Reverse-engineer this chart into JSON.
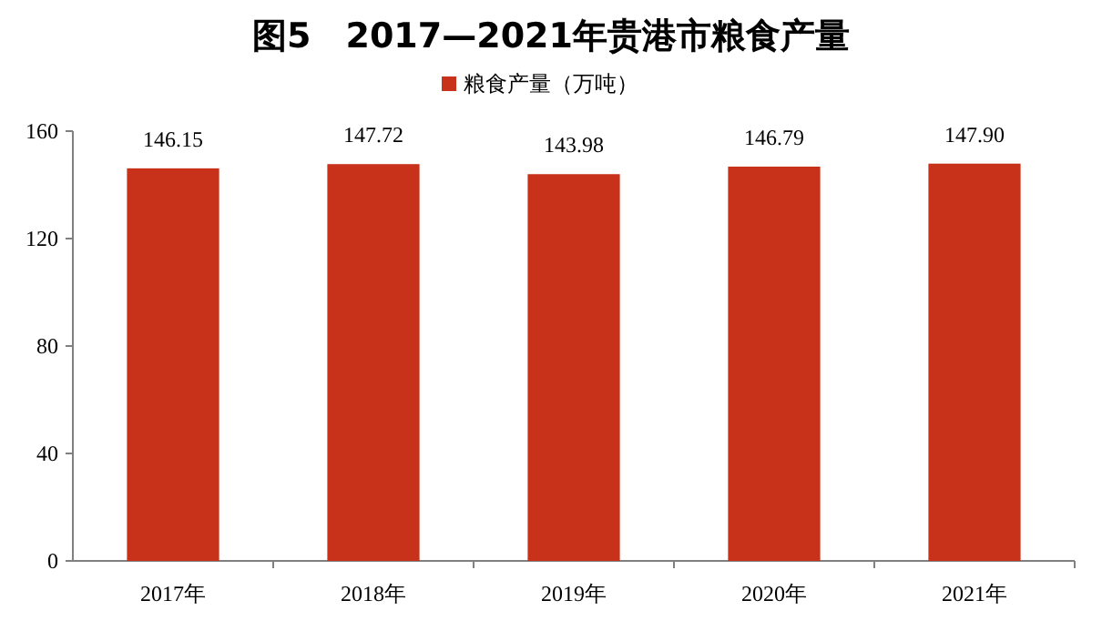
{
  "chart_data": {
    "type": "bar",
    "title": "图5　2017—2021年贵港市粮食产量",
    "categories": [
      "2017年",
      "2018年",
      "2019年",
      "2020年",
      "2021年"
    ],
    "series": [
      {
        "name": "粮食产量（万吨）",
        "color": "#c8321a",
        "values": [
          146.15,
          147.72,
          143.98,
          146.79,
          147.9
        ]
      }
    ],
    "value_labels": [
      "146.15",
      "147.72",
      "143.98",
      "146.79",
      "147.90"
    ],
    "ylim": [
      0,
      160
    ],
    "yticks": [
      0,
      40,
      80,
      120,
      160
    ],
    "grid": false,
    "legend": "top"
  }
}
